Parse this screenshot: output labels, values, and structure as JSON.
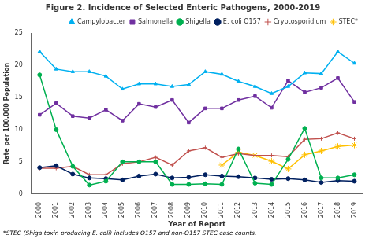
{
  "chart_data": {
    "type": "line",
    "title": "Figure 2. Incidence of Selected Enteric Pathogens, 2000-2019",
    "x_label": "Year of Report",
    "y_label": "Rate per 100,000 Population",
    "annotations": [
      "*STEC (Shiga toxin producing E. coli) includes O157 and non-O157 STEC case counts."
    ],
    "x": [
      2000,
      2001,
      2002,
      2003,
      2004,
      2005,
      2006,
      2007,
      2008,
      2009,
      2010,
      2011,
      2012,
      2013,
      2014,
      2015,
      2016,
      2017,
      2018,
      2019
    ],
    "series": [
      {
        "name": "Campylobacter",
        "color": "#00B0F0",
        "marker": "triangle",
        "line_style": "solid",
        "values": [
          22.1,
          19.4,
          19.0,
          19.0,
          18.3,
          16.3,
          17.1,
          17.1,
          16.7,
          17.0,
          19.0,
          18.6,
          17.5,
          16.7,
          15.6,
          16.7,
          18.8,
          18.7,
          22.1,
          20.3
        ]
      },
      {
        "name": "Salmonella",
        "color": "#7030A0",
        "marker": "square",
        "line_style": "solid",
        "values": [
          12.3,
          14.1,
          12.1,
          11.8,
          13.1,
          11.4,
          14.0,
          13.5,
          14.6,
          11.1,
          13.3,
          13.3,
          14.6,
          15.2,
          13.4,
          17.6,
          15.8,
          16.5,
          18.0,
          14.3
        ]
      },
      {
        "name": "Shigella",
        "color": "#00B050",
        "marker": "circle",
        "line_style": "solid",
        "values": [
          18.5,
          10.0,
          4.3,
          1.4,
          2.0,
          5.0,
          5.0,
          5.0,
          1.5,
          1.5,
          1.6,
          1.5,
          7.0,
          1.7,
          1.5,
          5.4,
          10.2,
          2.5,
          2.5,
          3.0
        ]
      },
      {
        "name": "E. coli O157",
        "color": "#002060",
        "marker": "circle",
        "line_style": "solid",
        "values": [
          4.1,
          4.4,
          3.1,
          2.5,
          2.4,
          2.2,
          2.8,
          3.1,
          2.5,
          2.6,
          3.0,
          2.8,
          2.7,
          2.5,
          2.3,
          2.4,
          2.2,
          1.8,
          2.1,
          2.0
        ]
      },
      {
        "name": "Cryptosporidium",
        "color": "#C0504D",
        "marker": "plus",
        "line_style": "solid",
        "values": [
          4.0,
          4.0,
          4.3,
          3.0,
          3.0,
          4.7,
          5.0,
          5.7,
          4.5,
          6.7,
          7.2,
          5.7,
          6.3,
          6.0,
          6.0,
          5.8,
          8.5,
          8.6,
          9.5,
          8.6
        ]
      },
      {
        "name": "STEC*",
        "color": "#FFC000",
        "marker": "star",
        "line_style": "solid",
        "values": [
          null,
          null,
          null,
          null,
          null,
          null,
          null,
          null,
          null,
          null,
          null,
          4.5,
          6.5,
          6.0,
          5.1,
          3.9,
          6.1,
          6.7,
          7.4,
          7.6
        ]
      }
    ],
    "xlim": [
      1999.5,
      2019.5
    ],
    "xticks": [
      2000,
      2001,
      2002,
      2003,
      2004,
      2005,
      2006,
      2007,
      2008,
      2009,
      2010,
      2011,
      2012,
      2013,
      2014,
      2015,
      2016,
      2017,
      2018,
      2019
    ],
    "ylim": [
      0,
      25
    ],
    "yticks": [
      0,
      5,
      10,
      15,
      20,
      25
    ],
    "grid": false,
    "legend": "upper right"
  }
}
